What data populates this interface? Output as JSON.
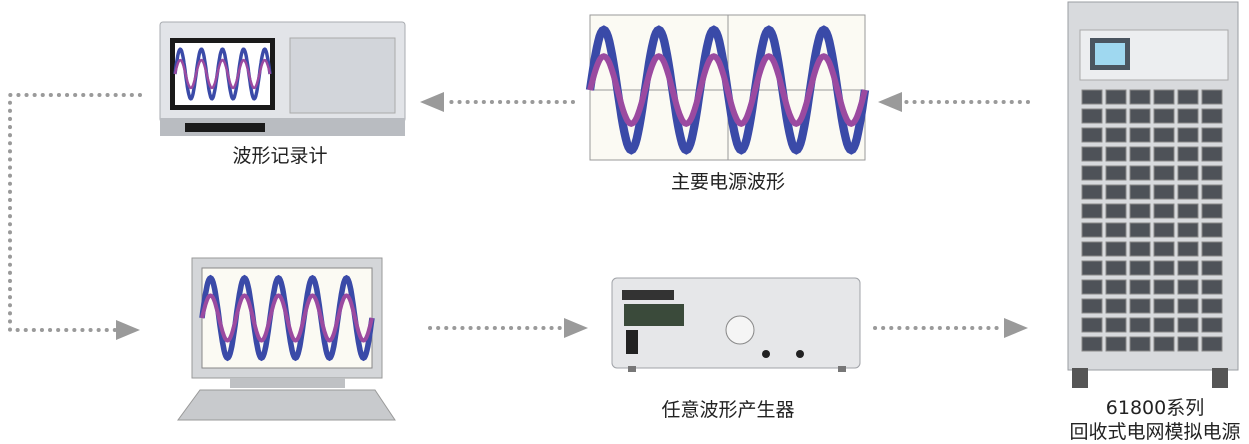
{
  "nodes": [
    {
      "label": "波形记录计"
    },
    {
      "label": "主要电源波形"
    },
    {
      "label": "任意波形产生器"
    },
    {
      "label": "61800系列",
      "sublabel": "回收式电网模拟电源"
    }
  ]
}
